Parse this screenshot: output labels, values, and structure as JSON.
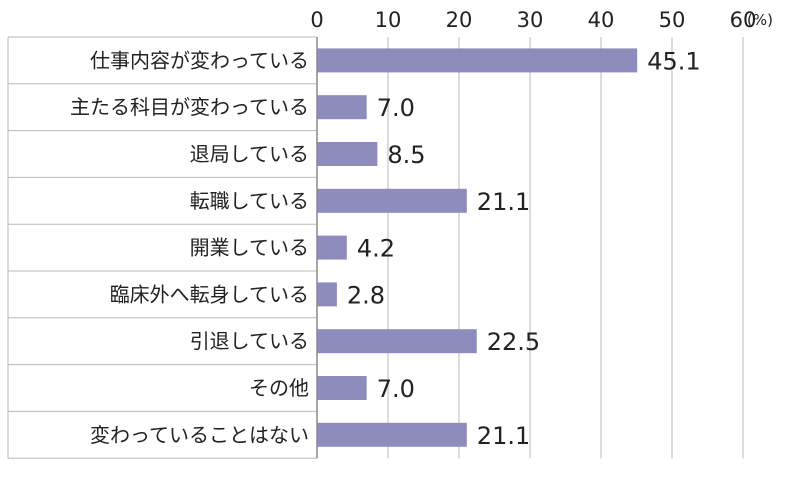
{
  "chart_data": {
    "type": "bar",
    "orientation": "horizontal",
    "categories": [
      "仕事内容が変わっている",
      "主たる科目が変わっている",
      "退局している",
      "転職している",
      "開業している",
      "臨床外へ転身している",
      "引退している",
      "その他",
      "変わっていることはない"
    ],
    "values": [
      45.1,
      7.0,
      8.5,
      21.1,
      4.2,
      2.8,
      22.5,
      7.0,
      21.1
    ],
    "value_labels": [
      "45.1",
      "7.0",
      "8.5",
      "21.1",
      "4.2",
      "2.8",
      "22.5",
      "7.0",
      "21.1"
    ],
    "xlim": [
      0,
      60
    ],
    "x_ticks": [
      "0",
      "10",
      "20",
      "30",
      "40",
      "50",
      "60"
    ],
    "unit": "(%)",
    "grid": true,
    "bar_color": "#8e8bbd",
    "grid_color": "#b8b8b8"
  }
}
